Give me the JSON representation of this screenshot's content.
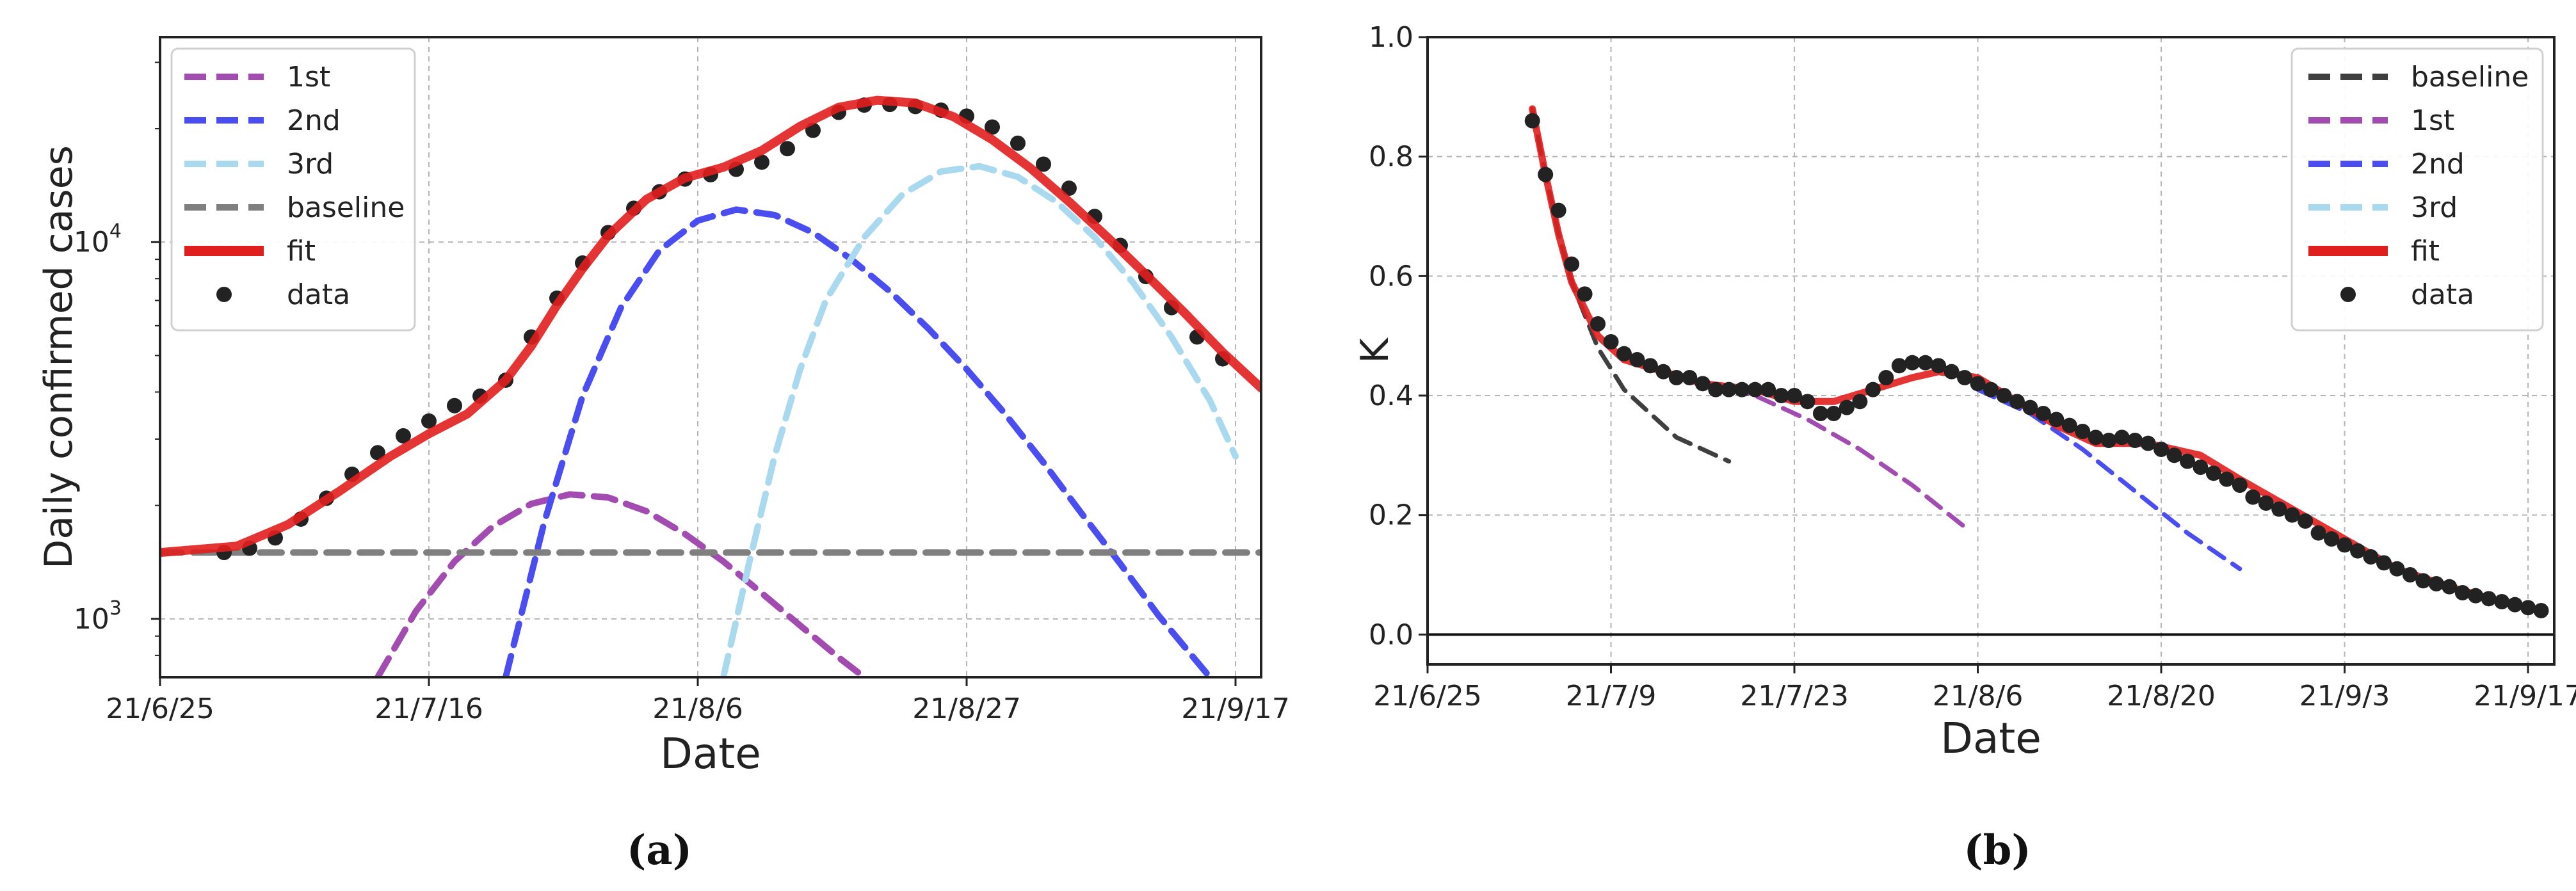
{
  "figure": {
    "panel_a_label": "(a)",
    "panel_b_label": "(b)"
  },
  "colors": {
    "first": "#a24bb0",
    "second": "#4a4df0",
    "third": "#a9d9ee",
    "baseline_a": "#7f7f7f",
    "baseline_b": "#3f3f3f",
    "fit": "#e11e1e",
    "data": "#222222",
    "grid": "#b5b5b5"
  },
  "chart_data": [
    {
      "type": "line",
      "title": "",
      "xlabel": "Date",
      "ylabel": "Daily confirmed cases",
      "yscale": "log",
      "xlim": [
        "2021-06-25",
        "2021-09-19"
      ],
      "ylim": [
        700,
        35000
      ],
      "x_ticks": [
        {
          "date": "2021-06-25",
          "label": "21/6/25"
        },
        {
          "date": "2021-07-16",
          "label": "21/7/16"
        },
        {
          "date": "2021-08-06",
          "label": "21/8/6"
        },
        {
          "date": "2021-08-27",
          "label": "21/8/27"
        },
        {
          "date": "2021-09-17",
          "label": "21/9/17"
        }
      ],
      "y_ticks": [
        {
          "value": 1000,
          "label": "10",
          "exp": "3"
        },
        {
          "value": 10000,
          "label": "10",
          "exp": "4"
        }
      ],
      "grid": true,
      "legend_position": "top-left",
      "series": [
        {
          "name": "1st",
          "key": "first",
          "style": "dashed",
          "x": [
            "2021-07-12",
            "2021-07-15",
            "2021-07-18",
            "2021-07-21",
            "2021-07-24",
            "2021-07-27",
            "2021-07-30",
            "2021-08-02",
            "2021-08-05",
            "2021-08-08",
            "2021-08-11",
            "2021-08-14",
            "2021-08-17",
            "2021-08-19"
          ],
          "y": [
            700,
            1050,
            1420,
            1760,
            2020,
            2140,
            2100,
            1930,
            1680,
            1420,
            1170,
            960,
            790,
            700
          ]
        },
        {
          "name": "2nd",
          "key": "second",
          "style": "dashed",
          "x": [
            "2021-07-22",
            "2021-07-25",
            "2021-07-28",
            "2021-07-31",
            "2021-08-03",
            "2021-08-06",
            "2021-08-09",
            "2021-08-12",
            "2021-08-15",
            "2021-08-18",
            "2021-08-21",
            "2021-08-24",
            "2021-08-27",
            "2021-08-30",
            "2021-09-02",
            "2021-09-05",
            "2021-09-08",
            "2021-09-11",
            "2021-09-15"
          ],
          "y": [
            700,
            1800,
            3900,
            6700,
            9500,
            11400,
            12200,
            11800,
            10600,
            9000,
            7400,
            5900,
            4600,
            3500,
            2600,
            1900,
            1400,
            1020,
            700
          ]
        },
        {
          "name": "3rd",
          "key": "third",
          "style": "dashed",
          "x": [
            "2021-08-08",
            "2021-08-10",
            "2021-08-12",
            "2021-08-14",
            "2021-08-16",
            "2021-08-19",
            "2021-08-22",
            "2021-08-25",
            "2021-08-28",
            "2021-08-31",
            "2021-09-03",
            "2021-09-06",
            "2021-09-09",
            "2021-09-12",
            "2021-09-15",
            "2021-09-17"
          ],
          "y": [
            700,
            1400,
            2700,
            4600,
            7000,
            10300,
            13400,
            15400,
            15900,
            14900,
            12800,
            10300,
            7800,
            5600,
            3800,
            2700
          ]
        },
        {
          "name": "baseline",
          "key": "baseline_a",
          "style": "dashed",
          "x": [
            "2021-06-25",
            "2021-09-19"
          ],
          "y": [
            1500,
            1500
          ]
        },
        {
          "name": "fit",
          "key": "fit",
          "style": "solid",
          "x": [
            "2021-06-25",
            "2021-07-01",
            "2021-07-05",
            "2021-07-09",
            "2021-07-13",
            "2021-07-16",
            "2021-07-19",
            "2021-07-22",
            "2021-07-24",
            "2021-07-26",
            "2021-07-28",
            "2021-07-30",
            "2021-08-02",
            "2021-08-05",
            "2021-08-08",
            "2021-08-11",
            "2021-08-14",
            "2021-08-17",
            "2021-08-20",
            "2021-08-23",
            "2021-08-26",
            "2021-08-29",
            "2021-09-01",
            "2021-09-04",
            "2021-09-07",
            "2021-09-10",
            "2021-09-13",
            "2021-09-16",
            "2021-09-19"
          ],
          "y": [
            1500,
            1560,
            1780,
            2180,
            2700,
            3100,
            3500,
            4300,
            5300,
            6800,
            8500,
            10400,
            13000,
            14800,
            15800,
            17500,
            20300,
            22800,
            23800,
            23400,
            21500,
            18700,
            15700,
            12800,
            10300,
            8200,
            6500,
            5100,
            4100
          ]
        },
        {
          "name": "data",
          "key": "data",
          "style": "markers",
          "x": [
            "2021-06-30",
            "2021-07-02",
            "2021-07-04",
            "2021-07-06",
            "2021-07-08",
            "2021-07-10",
            "2021-07-12",
            "2021-07-14",
            "2021-07-16",
            "2021-07-18",
            "2021-07-20",
            "2021-07-22",
            "2021-07-24",
            "2021-07-26",
            "2021-07-28",
            "2021-07-30",
            "2021-08-01",
            "2021-08-03",
            "2021-08-05",
            "2021-08-07",
            "2021-08-09",
            "2021-08-11",
            "2021-08-13",
            "2021-08-15",
            "2021-08-17",
            "2021-08-19",
            "2021-08-21",
            "2021-08-23",
            "2021-08-25",
            "2021-08-27",
            "2021-08-29",
            "2021-08-31",
            "2021-09-02",
            "2021-09-04",
            "2021-09-06",
            "2021-09-08",
            "2021-09-10",
            "2021-09-12",
            "2021-09-14",
            "2021-09-16"
          ],
          "y": [
            1500,
            1540,
            1640,
            1840,
            2090,
            2420,
            2760,
            3060,
            3350,
            3680,
            3900,
            4300,
            5600,
            7100,
            8800,
            10600,
            12300,
            13600,
            14700,
            15100,
            15600,
            16300,
            17700,
            19800,
            22100,
            23100,
            23200,
            22900,
            22400,
            21600,
            20200,
            18300,
            16100,
            13900,
            11700,
            9800,
            8100,
            6700,
            5600,
            4900
          ]
        }
      ]
    },
    {
      "type": "line",
      "title": "",
      "xlabel": "Date",
      "ylabel": "K",
      "yscale": "linear",
      "xlim": [
        "2021-06-25",
        "2021-09-19"
      ],
      "ylim": [
        -0.05,
        1.0
      ],
      "x_ticks": [
        {
          "date": "2021-06-25",
          "label": "21/6/25"
        },
        {
          "date": "2021-07-09",
          "label": "21/7/9"
        },
        {
          "date": "2021-07-23",
          "label": "21/7/23"
        },
        {
          "date": "2021-08-06",
          "label": "21/8/6"
        },
        {
          "date": "2021-08-20",
          "label": "21/8/20"
        },
        {
          "date": "2021-09-03",
          "label": "21/9/3"
        },
        {
          "date": "2021-09-17",
          "label": "21/9/17"
        }
      ],
      "y_ticks": [
        {
          "value": 0.0,
          "label": "0.0"
        },
        {
          "value": 0.2,
          "label": "0.2"
        },
        {
          "value": 0.4,
          "label": "0.4"
        },
        {
          "value": 0.6,
          "label": "0.6"
        },
        {
          "value": 0.8,
          "label": "0.8"
        },
        {
          "value": 1.0,
          "label": "1.0"
        }
      ],
      "grid": true,
      "zero_line": true,
      "legend_position": "top-right",
      "series": [
        {
          "name": "baseline",
          "key": "baseline_b",
          "style": "dashed",
          "x": [
            "2021-07-03",
            "2021-07-04",
            "2021-07-05",
            "2021-07-06",
            "2021-07-08",
            "2021-07-10",
            "2021-07-12",
            "2021-07-14",
            "2021-07-16",
            "2021-07-18"
          ],
          "y": [
            0.88,
            0.77,
            0.67,
            0.59,
            0.48,
            0.41,
            0.37,
            0.33,
            0.31,
            0.29
          ]
        },
        {
          "name": "1st",
          "key": "first",
          "style": "dashed",
          "x": [
            "2021-07-16",
            "2021-07-20",
            "2021-07-24",
            "2021-07-28",
            "2021-08-01",
            "2021-08-05"
          ],
          "y": [
            0.42,
            0.4,
            0.36,
            0.31,
            0.25,
            0.18
          ]
        },
        {
          "name": "2nd",
          "key": "second",
          "style": "dashed",
          "x": [
            "2021-08-06",
            "2021-08-10",
            "2021-08-14",
            "2021-08-18",
            "2021-08-22",
            "2021-08-26"
          ],
          "y": [
            0.41,
            0.37,
            0.31,
            0.24,
            0.17,
            0.11
          ]
        },
        {
          "name": "3rd",
          "key": "third",
          "style": "dashed",
          "x": [],
          "y": []
        },
        {
          "name": "fit",
          "key": "fit",
          "style": "solid",
          "x": [
            "2021-07-03",
            "2021-07-04",
            "2021-07-05",
            "2021-07-06",
            "2021-07-08",
            "2021-07-10",
            "2021-07-13",
            "2021-07-16",
            "2021-07-20",
            "2021-07-23",
            "2021-07-26",
            "2021-07-29",
            "2021-08-01",
            "2021-08-03",
            "2021-08-06",
            "2021-08-09",
            "2021-08-12",
            "2021-08-15",
            "2021-08-19",
            "2021-08-23",
            "2021-08-26",
            "2021-08-30",
            "2021-09-03",
            "2021-09-07",
            "2021-09-11",
            "2021-09-15",
            "2021-09-18"
          ],
          "y": [
            0.88,
            0.77,
            0.67,
            0.59,
            0.5,
            0.46,
            0.44,
            0.42,
            0.41,
            0.39,
            0.39,
            0.41,
            0.43,
            0.44,
            0.43,
            0.39,
            0.35,
            0.32,
            0.32,
            0.3,
            0.26,
            0.21,
            0.16,
            0.11,
            0.08,
            0.055,
            0.04
          ]
        },
        {
          "name": "data",
          "key": "data",
          "style": "markers",
          "x": [
            "2021-07-03",
            "2021-07-04",
            "2021-07-05",
            "2021-07-06",
            "2021-07-07",
            "2021-07-08",
            "2021-07-09",
            "2021-07-10",
            "2021-07-11",
            "2021-07-12",
            "2021-07-13",
            "2021-07-14",
            "2021-07-15",
            "2021-07-16",
            "2021-07-17",
            "2021-07-18",
            "2021-07-19",
            "2021-07-20",
            "2021-07-21",
            "2021-07-22",
            "2021-07-23",
            "2021-07-24",
            "2021-07-25",
            "2021-07-26",
            "2021-07-27",
            "2021-07-28",
            "2021-07-29",
            "2021-07-30",
            "2021-07-31",
            "2021-08-01",
            "2021-08-02",
            "2021-08-03",
            "2021-08-04",
            "2021-08-05",
            "2021-08-06",
            "2021-08-07",
            "2021-08-08",
            "2021-08-09",
            "2021-08-10",
            "2021-08-11",
            "2021-08-12",
            "2021-08-13",
            "2021-08-14",
            "2021-08-15",
            "2021-08-16",
            "2021-08-17",
            "2021-08-18",
            "2021-08-19",
            "2021-08-20",
            "2021-08-21",
            "2021-08-22",
            "2021-08-23",
            "2021-08-24",
            "2021-08-25",
            "2021-08-26",
            "2021-08-27",
            "2021-08-28",
            "2021-08-29",
            "2021-08-30",
            "2021-08-31",
            "2021-09-01",
            "2021-09-02",
            "2021-09-03",
            "2021-09-04",
            "2021-09-05",
            "2021-09-06",
            "2021-09-07",
            "2021-09-08",
            "2021-09-09",
            "2021-09-10",
            "2021-09-11",
            "2021-09-12",
            "2021-09-13",
            "2021-09-14",
            "2021-09-15",
            "2021-09-16",
            "2021-09-17",
            "2021-09-18"
          ],
          "y": [
            0.86,
            0.77,
            0.71,
            0.62,
            0.57,
            0.52,
            0.49,
            0.47,
            0.46,
            0.45,
            0.44,
            0.43,
            0.43,
            0.42,
            0.41,
            0.41,
            0.41,
            0.41,
            0.41,
            0.4,
            0.4,
            0.39,
            0.37,
            0.37,
            0.38,
            0.39,
            0.41,
            0.43,
            0.45,
            0.455,
            0.455,
            0.45,
            0.44,
            0.43,
            0.42,
            0.41,
            0.4,
            0.39,
            0.38,
            0.37,
            0.36,
            0.35,
            0.34,
            0.33,
            0.325,
            0.33,
            0.325,
            0.32,
            0.31,
            0.3,
            0.29,
            0.28,
            0.27,
            0.26,
            0.25,
            0.23,
            0.22,
            0.21,
            0.2,
            0.19,
            0.17,
            0.16,
            0.15,
            0.14,
            0.13,
            0.12,
            0.11,
            0.1,
            0.09,
            0.085,
            0.08,
            0.07,
            0.065,
            0.06,
            0.055,
            0.05,
            0.045,
            0.04
          ]
        }
      ]
    }
  ]
}
